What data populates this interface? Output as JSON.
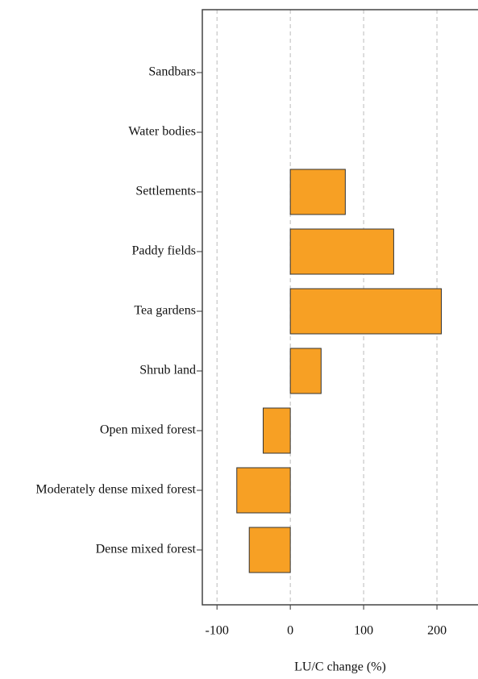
{
  "chart_data": {
    "type": "barh",
    "x_label": "LU/C change (%)",
    "categories": [
      "Sandbars",
      "Water bodies",
      "Settlements",
      "Paddy fields",
      "Tea gardens",
      "Shrub land",
      "Open mixed forest",
      "Moderately dense mixed forest",
      "Dense mixed forest"
    ],
    "values": [
      0,
      0,
      75,
      141,
      206,
      42,
      -37,
      -73,
      -56
    ],
    "color": "#f7a024",
    "xlim": [
      -120,
      256
    ],
    "xticks": [
      -100,
      0,
      100,
      200
    ],
    "grid": true
  }
}
